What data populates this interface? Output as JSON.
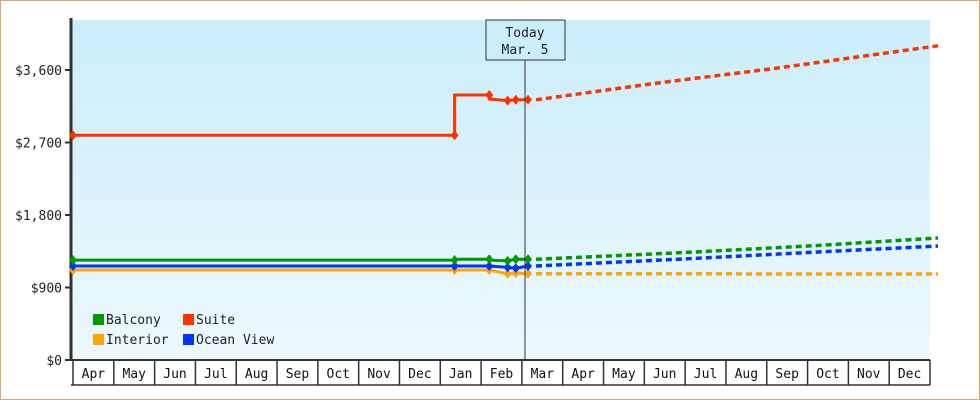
{
  "chart_data": {
    "type": "line",
    "title": "",
    "xlabel": "",
    "ylabel": "",
    "ylim": [
      0,
      4250
    ],
    "grid": false,
    "legend_position": "lower-left inside",
    "y_ticks": [
      {
        "value": 0,
        "label": "$0"
      },
      {
        "value": 900,
        "label": "$900"
      },
      {
        "value": 1800,
        "label": "$1,800"
      },
      {
        "value": 2700,
        "label": "$2,700"
      },
      {
        "value": 3600,
        "label": "$3,600"
      }
    ],
    "categories": [
      "Apr",
      "May",
      "Jun",
      "Jul",
      "Aug",
      "Sep",
      "Oct",
      "Nov",
      "Dec",
      "Jan",
      "Feb",
      "Mar",
      "Apr",
      "May",
      "Jun",
      "Jul",
      "Aug",
      "Sep",
      "Oct",
      "Nov",
      "Dec"
    ],
    "today_marker": {
      "line1": "Today",
      "line2": "Mar. 5"
    },
    "series": [
      {
        "name": "Balcony",
        "color": "#009900",
        "historical": [
          [
            0,
            1240
          ],
          [
            9.35,
            1240
          ],
          [
            9.35,
            1250
          ],
          [
            10.2,
            1250
          ],
          [
            10.2,
            1240
          ],
          [
            10.65,
            1230
          ],
          [
            10.85,
            1250
          ],
          [
            11.15,
            1250
          ]
        ],
        "forecast": [
          [
            11.15,
            1250
          ],
          [
            15,
            1340
          ],
          [
            18,
            1420
          ],
          [
            21,
            1514
          ]
        ]
      },
      {
        "name": "Suite",
        "color": "#ff3300",
        "historical": [
          [
            0,
            2790
          ],
          [
            9.35,
            2790
          ],
          [
            9.35,
            3290
          ],
          [
            10.2,
            3290
          ],
          [
            10.2,
            3240
          ],
          [
            10.65,
            3220
          ],
          [
            10.85,
            3230
          ],
          [
            11.15,
            3230
          ]
        ],
        "forecast": [
          [
            11.15,
            3230
          ],
          [
            14,
            3430
          ],
          [
            17,
            3620
          ],
          [
            21,
            3900
          ]
        ]
      },
      {
        "name": "Interior",
        "color": "#ffa500",
        "historical": [
          [
            0,
            1117
          ],
          [
            9.35,
            1117
          ],
          [
            10.2,
            1117
          ],
          [
            10.65,
            1070
          ],
          [
            10.85,
            1080
          ],
          [
            11.15,
            1070
          ]
        ],
        "forecast": [
          [
            11.15,
            1070
          ],
          [
            16,
            1070
          ],
          [
            16.2,
            1067
          ],
          [
            21,
            1067
          ]
        ]
      },
      {
        "name": "Ocean View",
        "color": "#0033ff",
        "historical": [
          [
            0,
            1167
          ],
          [
            9.35,
            1167
          ],
          [
            10.2,
            1167
          ],
          [
            10.65,
            1150
          ],
          [
            10.85,
            1140
          ],
          [
            11.15,
            1167
          ]
        ],
        "forecast": [
          [
            11.15,
            1167
          ],
          [
            15,
            1260
          ],
          [
            18,
            1340
          ],
          [
            21,
            1415
          ]
        ]
      }
    ]
  },
  "legend": [
    {
      "label": "Balcony",
      "color": "#009900"
    },
    {
      "label": "Suite",
      "color": "#ff3300"
    },
    {
      "label": "Interior",
      "color": "#ffa500"
    },
    {
      "label": "Ocean View",
      "color": "#0033ff"
    }
  ]
}
